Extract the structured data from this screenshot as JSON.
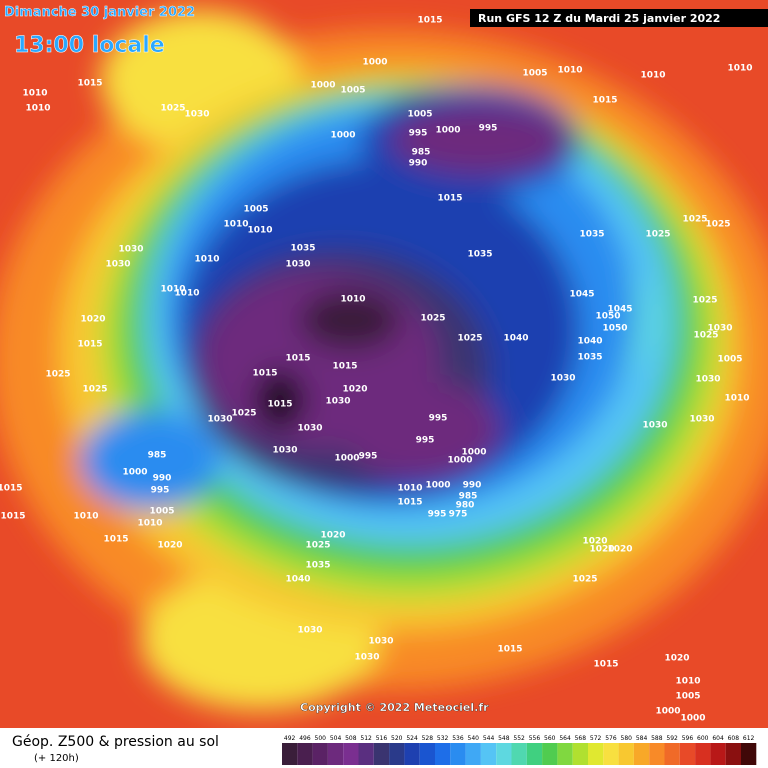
{
  "header": {
    "date": "Dimanche 30 janvier 2022",
    "time": "13:00 locale",
    "run": "Run GFS 12 Z du Mardi 25 janvier 2022"
  },
  "copyright": "Copyright © 2022 Meteociel.fr",
  "footer": {
    "title": "Géop. Z500 & pression au sol",
    "lead": "(+ 120h)"
  },
  "colorbar": {
    "labels": [
      "492",
      "496",
      "500",
      "504",
      "508",
      "512",
      "516",
      "520",
      "524",
      "528",
      "532",
      "536",
      "540",
      "544",
      "548",
      "552",
      "556",
      "560",
      "564",
      "568",
      "572",
      "576",
      "580",
      "584",
      "588",
      "592",
      "596",
      "600",
      "604",
      "608",
      "612"
    ],
    "colors": [
      "#3a1e3a",
      "#4a1f4f",
      "#5a2265",
      "#6d2a7d",
      "#7a2f90",
      "#5a2f80",
      "#3a3470",
      "#2a3a8a",
      "#1e40b0",
      "#1a55d0",
      "#1e6ee8",
      "#2a8cf0",
      "#3fa8f5",
      "#55c4f5",
      "#5ed8e0",
      "#50d8b0",
      "#40d080",
      "#50cc50",
      "#80d840",
      "#b0e030",
      "#e0e830",
      "#f8e040",
      "#f8c830",
      "#f8a828",
      "#f88a28",
      "#f06a28",
      "#e84a28",
      "#d83020",
      "#b81818",
      "#8a1010",
      "#400808"
    ]
  },
  "isobar_labels": [
    "1015",
    "1010",
    "1005",
    "1010",
    "1010",
    "1015",
    "1010",
    "1010",
    "1015",
    "1025",
    "1030",
    "1000",
    "1000",
    "1005",
    "1000",
    "1005",
    "995",
    "1000",
    "995",
    "985",
    "990",
    "1015",
    "1005",
    "1010",
    "1010",
    "1010",
    "1035",
    "1030",
    "1035",
    "1035",
    "1025",
    "1025",
    "1025",
    "1030",
    "1030",
    "1010",
    "1010",
    "1010",
    "1045",
    "1045",
    "1050",
    "1050",
    "1025",
    "1030",
    "1025",
    "1020",
    "1015",
    "1025",
    "1025",
    "1040",
    "1040",
    "1035",
    "1005",
    "1025",
    "1025",
    "1015",
    "1015",
    "1015",
    "1020",
    "1015",
    "1025",
    "1030",
    "1030",
    "1030",
    "1030",
    "1010",
    "1030",
    "995",
    "995",
    "1030",
    "1030",
    "1000",
    "995",
    "1030",
    "1000",
    "1000",
    "985",
    "1000",
    "990",
    "995",
    "1015",
    "1015",
    "1010",
    "1010",
    "1005",
    "1015",
    "1020",
    "1010",
    "1015",
    "1000",
    "990",
    "985",
    "980",
    "995",
    "975",
    "1020",
    "1025",
    "1020",
    "1020",
    "1020",
    "1035",
    "1040",
    "1025",
    "1030",
    "1030",
    "1030",
    "1015",
    "1015",
    "1020",
    "1010",
    "1005",
    "1000",
    "1000"
  ]
}
